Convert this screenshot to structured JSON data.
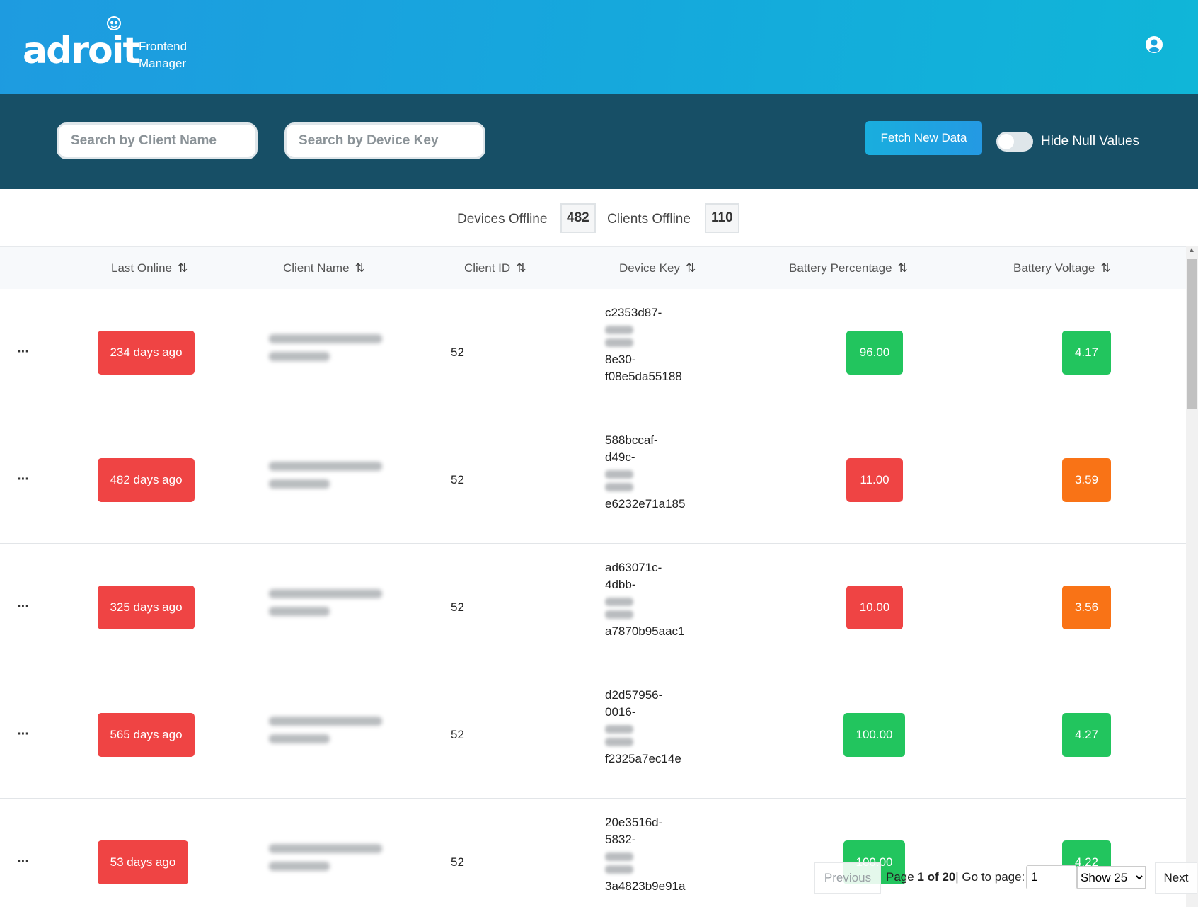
{
  "header": {
    "logo_text": "adroit",
    "subtitle_line1": "Frontend",
    "subtitle_line2": "Manager"
  },
  "filters": {
    "client_placeholder": "Search by Client Name",
    "device_placeholder": "Search by Device Key",
    "fetch_label": "Fetch New Data",
    "toggle_label": "Hide Null Values"
  },
  "stats": {
    "devices_offline_label": "Devices Offline",
    "devices_offline_value": "482",
    "clients_offline_label": "Clients Offline",
    "clients_offline_value": "110"
  },
  "table": {
    "headers": [
      "Last Online",
      "Client Name",
      "Client ID",
      "Device Key",
      "Battery Percentage",
      "Battery Voltage"
    ],
    "rows": [
      {
        "actions": "···",
        "last_online": "234 days ago",
        "client_id": "52",
        "key_1": "c2353d87-",
        "key_2": "",
        "key_3": "8e30-",
        "key_4": "f08e5da55188",
        "battery_pct": "96.00",
        "battery_volt": "4.17",
        "pct_status": "green",
        "volt_status": "green"
      },
      {
        "actions": "···",
        "last_online": "482 days ago",
        "client_id": "52",
        "key_1": "588bccaf-",
        "key_2": "d49c-",
        "key_3": "",
        "key_4": "e6232e71a185",
        "battery_pct": "11.00",
        "battery_volt": "3.59",
        "pct_status": "red",
        "volt_status": "orange"
      },
      {
        "actions": "···",
        "last_online": "325 days ago",
        "client_id": "52",
        "key_1": "ad63071c-",
        "key_2": "4dbb-",
        "key_3": "",
        "key_4": "a7870b95aac1",
        "battery_pct": "10.00",
        "battery_volt": "3.56",
        "pct_status": "red",
        "volt_status": "orange"
      },
      {
        "actions": "···",
        "last_online": "565 days ago",
        "client_id": "52",
        "key_1": "d2d57956-",
        "key_2": "0016-",
        "key_3": "",
        "key_4": "f2325a7ec14e",
        "battery_pct": "100.00",
        "battery_volt": "4.27",
        "pct_status": "green",
        "volt_status": "green"
      },
      {
        "actions": "···",
        "last_online": "53 days ago",
        "client_id": "52",
        "key_1": "20e3516d-",
        "key_2": "5832-",
        "key_3": "",
        "key_4": "3a4823b9e91a",
        "battery_pct": "100.00",
        "battery_volt": "4.22",
        "pct_status": "green",
        "volt_status": "green"
      }
    ]
  },
  "pagination": {
    "previous": "Previous",
    "page_word": "Page",
    "page_of": "1 of 20",
    "goto_label": "| Go to page:",
    "goto_value": "1",
    "page_size": "Show 25",
    "next": "Next"
  },
  "colors": {
    "header_gradient_start": "#1e9be0",
    "header_gradient_end": "#10b6d8",
    "filter_bar": "#174f66",
    "badge_red": "#ef4444",
    "badge_green": "#22c55e",
    "badge_orange": "#f97316"
  },
  "icons": {
    "user": "user-circle-icon",
    "sort": "sort-icon",
    "logo_mark": "robot-face-icon"
  }
}
